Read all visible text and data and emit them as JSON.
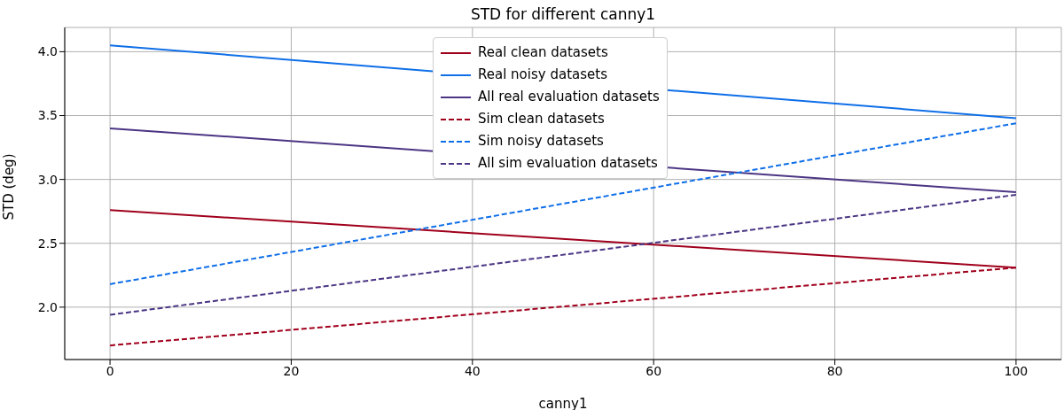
{
  "chart_data": {
    "type": "line",
    "title": "STD for different canny1",
    "xlabel": "canny1",
    "ylabel": "STD (deg)",
    "x": [
      0,
      100
    ],
    "series": [
      {
        "name": "Real clean datasets",
        "color": "#a0001c",
        "values": [
          2.76,
          2.31
        ],
        "line_style": "solid"
      },
      {
        "name": "Real noisy datasets",
        "color": "#0f6fe8",
        "values": [
          4.05,
          3.48
        ],
        "line_style": "solid"
      },
      {
        "name": "All real evaluation datasets",
        "color": "#4b3584",
        "values": [
          3.4,
          2.9
        ],
        "line_style": "solid"
      },
      {
        "name": "Sim clean datasets",
        "color": "#a0001c",
        "values": [
          1.7,
          2.31
        ],
        "line_style": "dashed"
      },
      {
        "name": "Sim noisy datasets",
        "color": "#0f6fe8",
        "values": [
          2.18,
          3.44
        ],
        "line_style": "dashed"
      },
      {
        "name": "All sim evaluation datasets",
        "color": "#4b3584",
        "values": [
          1.94,
          2.88
        ],
        "line_style": "dashed"
      }
    ],
    "xlim": [
      -5,
      105
    ],
    "xticks": [
      0,
      20,
      40,
      60,
      80,
      100
    ],
    "ylim": [
      1.59,
      4.19
    ],
    "yticks": [
      {
        "value": 2,
        "label": "2.0"
      },
      2.5,
      {
        "value": 3,
        "label": "3.0"
      },
      3.5,
      {
        "value": 4,
        "label": "4.0"
      }
    ],
    "grid": true,
    "legend": "top",
    "marker": "none"
  }
}
